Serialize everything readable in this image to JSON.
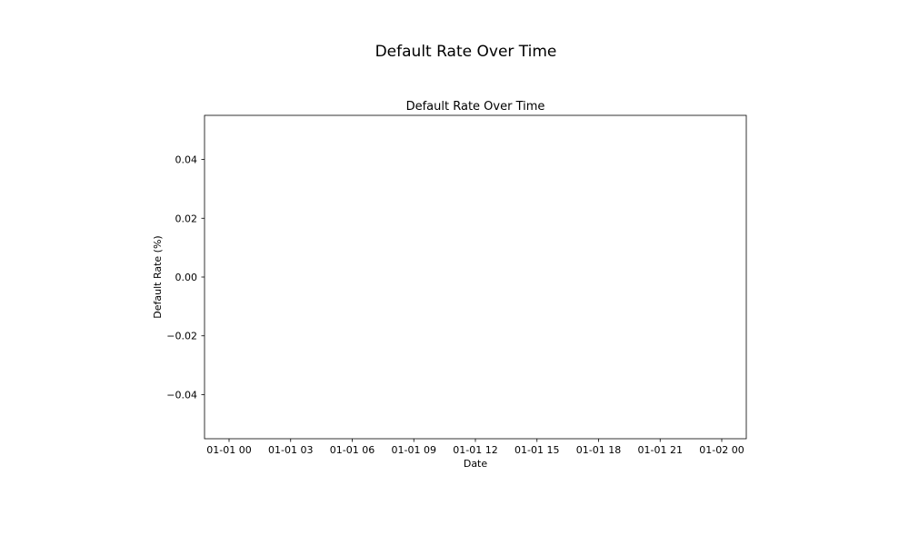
{
  "figure": {
    "suptitle": "Default Rate Over Time"
  },
  "chart_data": {
    "type": "line",
    "title": "Default Rate Over Time",
    "xlabel": "Date",
    "ylabel": "Default Rate (%)",
    "x": [],
    "series": [],
    "x_tick_labels": [
      "01-01 00",
      "01-01 03",
      "01-01 06",
      "01-01 09",
      "01-01 12",
      "01-01 15",
      "01-01 18",
      "01-01 21",
      "01-02 00"
    ],
    "xlim": [
      "01-01 00",
      "01-02 00"
    ],
    "y_ticks": [
      0.04,
      0.02,
      0.0,
      -0.02,
      -0.04
    ],
    "y_tick_labels": [
      "0.04",
      "0.02",
      "0.00",
      "−0.02",
      "−0.04"
    ],
    "ylim": [
      -0.055,
      0.055
    ],
    "grid": false,
    "legend": "none",
    "colors": {
      "axes": "#000000",
      "background": "#ffffff"
    }
  }
}
